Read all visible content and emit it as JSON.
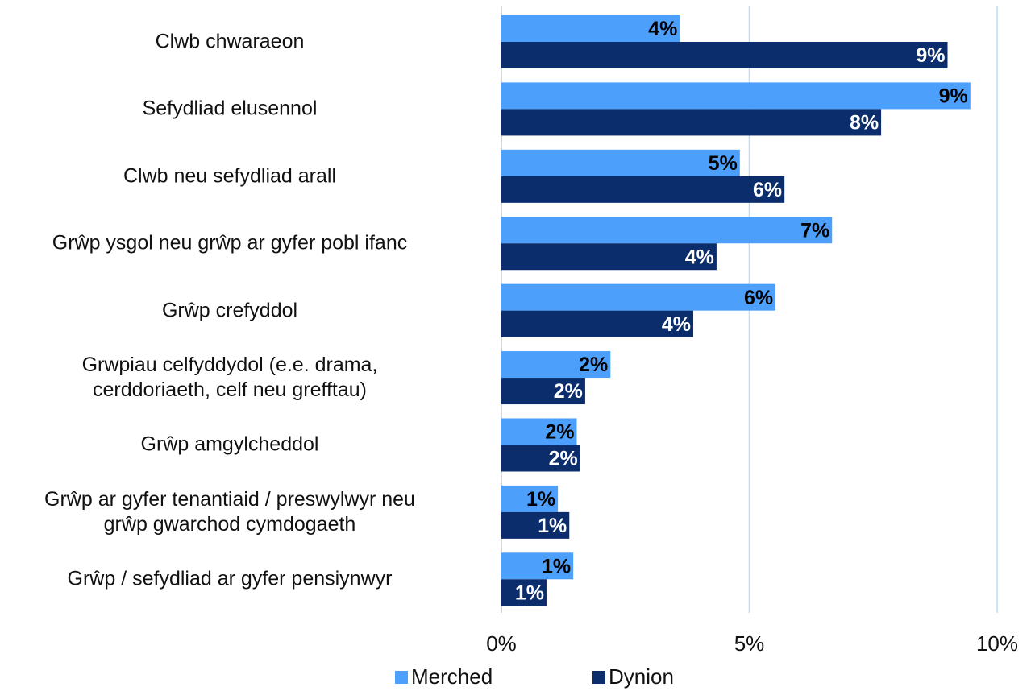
{
  "chart_data": {
    "type": "bar",
    "orientation": "horizontal",
    "categories": [
      "Clwb chwaraeon",
      "Sefydliad elusennol",
      "Clwb neu sefydliad arall",
      "Grŵp ysgol neu grŵp ar gyfer pobl ifanc",
      "Grŵp crefyddol",
      "Grwpiau celfyddydol (e.e. drama,\ncerddoriaeth, celf neu grefftau)",
      "Grŵp amgylcheddol",
      "Grŵp ar gyfer tenantiaid / preswylwyr neu\ngrŵp gwarchod cymdogaeth",
      "Grŵp / sefydliad ar gyfer pensiynwyr"
    ],
    "series": [
      {
        "name": "Merched",
        "color": "#4d9ffc",
        "label_color": "#000000",
        "values": [
          3.6,
          9.46,
          4.81,
          6.67,
          5.53,
          2.2,
          1.52,
          1.14,
          1.45
        ],
        "value_labels": [
          "4%",
          "9%",
          "5%",
          "7%",
          "6%",
          "2%",
          "2%",
          "1%",
          "1%"
        ]
      },
      {
        "name": "Dynion",
        "color": "#0b2d6b",
        "label_color": "#ffffff",
        "values": [
          9.0,
          7.66,
          5.71,
          4.34,
          3.87,
          1.69,
          1.59,
          1.37,
          0.91
        ],
        "value_labels": [
          "9%",
          "8%",
          "6%",
          "4%",
          "4%",
          "2%",
          "2%",
          "1%",
          "1%"
        ]
      }
    ],
    "xlim": [
      0,
      10
    ],
    "xticks": [
      {
        "value": 0,
        "label": "0%"
      },
      {
        "value": 5,
        "label": "5%"
      },
      {
        "value": 10,
        "label": "10%"
      }
    ],
    "grid": true,
    "legend": "bottom"
  }
}
